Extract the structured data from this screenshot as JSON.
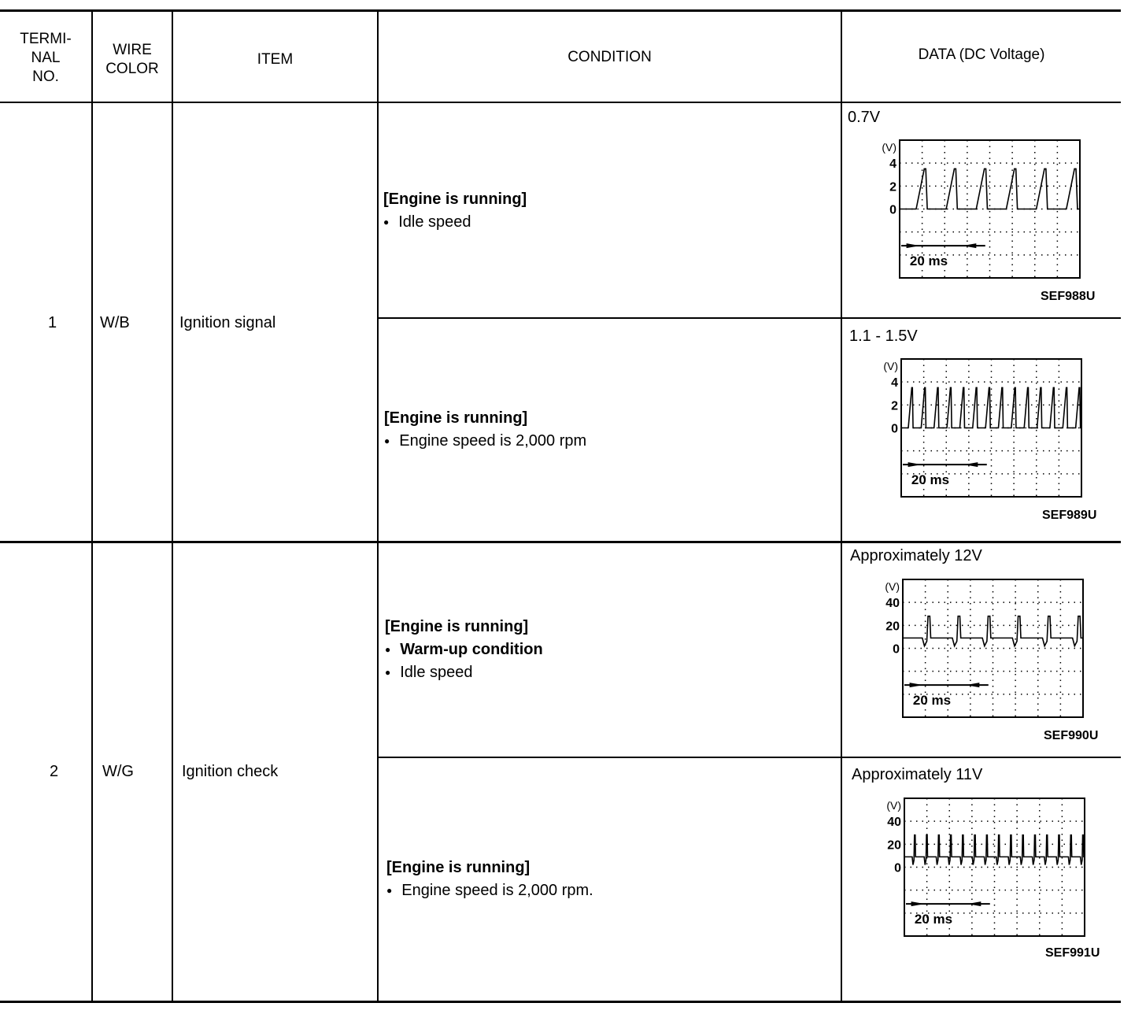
{
  "headers": {
    "terminal": "TERMI-\nNAL\nNO.",
    "wire": "WIRE\nCOLOR",
    "item": "ITEM",
    "condition": "CONDITION",
    "data": "DATA (DC Voltage)"
  },
  "rows": [
    {
      "terminal": "1",
      "wire": "W/B",
      "item": "Ignition signal",
      "sub": [
        {
          "cond_title": "[Engine is running]",
          "bullets": [
            {
              "text": "Idle speed",
              "bold": false
            }
          ],
          "value": "0.7V",
          "figure": "SEF988U",
          "waveform": {
            "unit": "(V)",
            "yticks": [
              "4",
              "2",
              "0"
            ],
            "time_scale": "20 ms",
            "pulses": 6,
            "shape": "sawtooth-pulse"
          }
        },
        {
          "cond_title": "[Engine is running]",
          "bullets": [
            {
              "text": "Engine speed is 2,000 rpm",
              "bold": false
            }
          ],
          "value": "1.1 - 1.5V",
          "figure": "SEF989U",
          "waveform": {
            "unit": "(V)",
            "yticks": [
              "4",
              "2",
              "0"
            ],
            "time_scale": "20 ms",
            "pulses": 14,
            "shape": "sawtooth-pulse"
          }
        }
      ]
    },
    {
      "terminal": "2",
      "wire": "W/G",
      "item": "Ignition check",
      "sub": [
        {
          "cond_title": "[Engine is running]",
          "bullets": [
            {
              "text": "Warm-up condition",
              "bold": true
            },
            {
              "text": "Idle speed",
              "bold": false
            }
          ],
          "value": "Approximately 12V",
          "figure": "SEF990U",
          "waveform": {
            "unit": "(V)",
            "yticks": [
              "40",
              "20",
              "0"
            ],
            "time_scale": "20 ms",
            "pulses": 6,
            "shape": "spike-step"
          }
        },
        {
          "cond_title": "[Engine is running]",
          "bullets": [
            {
              "text": "Engine speed is 2,000 rpm.",
              "bold": false
            }
          ],
          "value": "Approximately 11V",
          "figure": "SEF991U",
          "waveform": {
            "unit": "(V)",
            "yticks": [
              "40",
              "20",
              "0"
            ],
            "time_scale": "20 ms",
            "pulses": 15,
            "shape": "spike-step"
          }
        }
      ]
    }
  ]
}
